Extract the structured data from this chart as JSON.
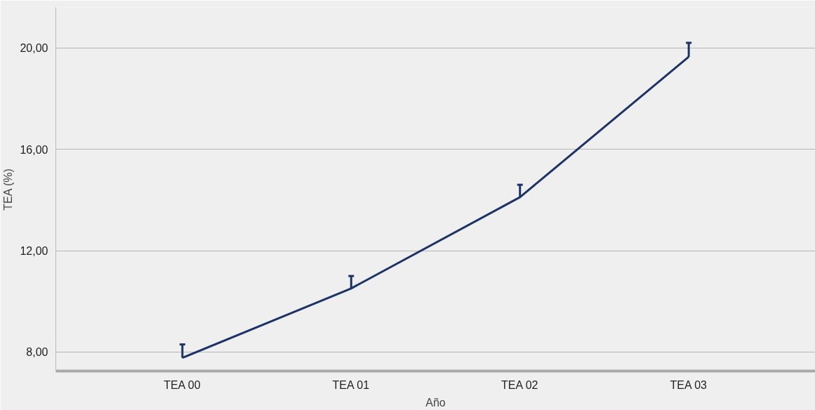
{
  "chart_data": {
    "type": "line",
    "xlabel": "Año",
    "ylabel": "TEA (%)",
    "categories": [
      "TEA 00",
      "TEA 01",
      "TEA 02",
      "TEA 03"
    ],
    "series": [
      {
        "color": "#1b3366",
        "values": [
          7.77,
          10.51,
          14.11,
          19.65
        ],
        "errors": [
          [
            7.77,
            8.3
          ],
          [
            10.51,
            11.0
          ],
          [
            14.11,
            14.6
          ],
          [
            19.65,
            20.2
          ]
        ]
      }
    ],
    "ylim": [
      7.25,
      21.6
    ],
    "yticks": [
      {
        "value": 8,
        "label": "8,00"
      },
      {
        "value": 12,
        "label": "12,00"
      },
      {
        "value": 16,
        "label": "16,00"
      },
      {
        "value": 20,
        "label": "20,00"
      }
    ],
    "grid": "y",
    "marker": "none",
    "line_style": "solid"
  }
}
